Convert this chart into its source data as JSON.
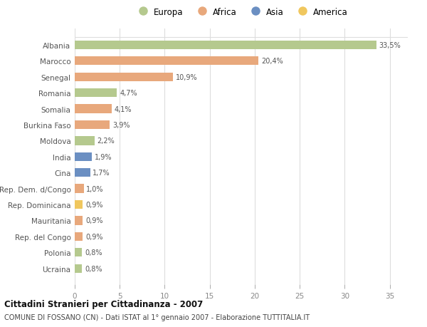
{
  "countries": [
    "Albania",
    "Marocco",
    "Senegal",
    "Romania",
    "Somalia",
    "Burkina Faso",
    "Moldova",
    "India",
    "Cina",
    "Rep. Dem. d/Congo",
    "Rep. Dominicana",
    "Mauritania",
    "Rep. del Congo",
    "Polonia",
    "Ucraina"
  ],
  "values": [
    33.5,
    20.4,
    10.9,
    4.7,
    4.1,
    3.9,
    2.2,
    1.9,
    1.7,
    1.0,
    0.9,
    0.9,
    0.9,
    0.8,
    0.8
  ],
  "labels": [
    "33,5%",
    "20,4%",
    "10,9%",
    "4,7%",
    "4,1%",
    "3,9%",
    "2,2%",
    "1,9%",
    "1,7%",
    "1,0%",
    "0,9%",
    "0,9%",
    "0,9%",
    "0,8%",
    "0,8%"
  ],
  "continents": [
    "Europa",
    "Africa",
    "Africa",
    "Europa",
    "Africa",
    "Africa",
    "Europa",
    "Asia",
    "Asia",
    "Africa",
    "America",
    "Africa",
    "Africa",
    "Europa",
    "Europa"
  ],
  "colors": {
    "Europa": "#b5c98e",
    "Africa": "#e8a87c",
    "Asia": "#6b8fc2",
    "America": "#f0c75e"
  },
  "xlim": [
    0,
    37
  ],
  "xticks": [
    0,
    5,
    10,
    15,
    20,
    25,
    30,
    35
  ],
  "title": "Cittadini Stranieri per Cittadinanza - 2007",
  "subtitle": "COMUNE DI FOSSANO (CN) - Dati ISTAT al 1° gennaio 2007 - Elaborazione TUTTITALIA.IT",
  "background_color": "#ffffff",
  "grid_color": "#dddddd",
  "bar_height": 0.55,
  "legend_order": [
    "Europa",
    "Africa",
    "Asia",
    "America"
  ]
}
